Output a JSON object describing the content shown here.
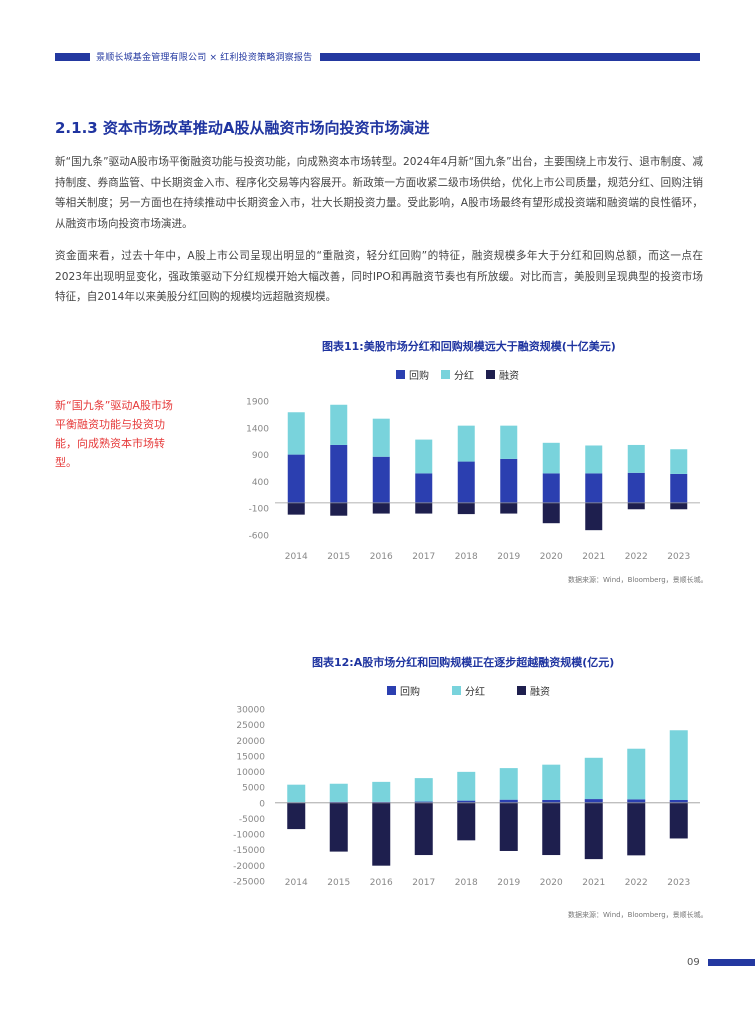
{
  "header": {
    "text": "景顺长城基金管理有限公司 × 红利投资策略洞察报告"
  },
  "section": {
    "title": "2.1.3 资本市场改革推动A股从融资市场向投资市场演进"
  },
  "paragraphs": {
    "p1": "新“国九条”驱动A股市场平衡融资功能与投资功能，向成熟资本市场转型。2024年4月新“国九条”出台，主要围绕上市发行、退市制度、减持制度、券商监管、中长期资金入市、程序化交易等内容展开。新政策一方面收紧二级市场供给，优化上市公司质量，规范分红、回购注销等相关制度；另一方面也在持续推动中长期资金入市，壮大长期投资力量。受此影响，A股市场最终有望形成投资端和融资端的良性循环，从融资市场向投资市场演进。",
    "p2": "资金面来看，过去十年中，A股上市公司呈现出明显的“重融资，轻分红回购”的特征，融资规模多年大于分红和回购总额，而这一点在2023年出现明显变化，强政策驱动下分红规模开始大幅改善，同时IPO和再融资节奏也有所放缓。对比而言，美股则呈现典型的投资市场特征，自2014年以来美股分红回购的规模均远超融资规模。"
  },
  "side_note": "新“国九条”驱动A股市场平衡融资功能与投资功能，向成熟资本市场转型。",
  "legend_labels": {
    "buyback": "回购",
    "dividend": "分红",
    "financing": "融资"
  },
  "colors": {
    "buyback": "#2b3fb0",
    "dividend": "#79d3dc",
    "financing": "#1e1f4e",
    "accent": "#2338a0",
    "note": "#e63a3a"
  },
  "chart_data": [
    {
      "type": "bar",
      "stacked": true,
      "title": "图表11:美股市场分红和回购规模远大于融资规模(十亿美元)",
      "categories": [
        "2014",
        "2015",
        "2016",
        "2017",
        "2018",
        "2019",
        "2020",
        "2021",
        "2022",
        "2023"
      ],
      "yticks": [
        1900,
        1400,
        900,
        400,
        -100,
        -600
      ],
      "ylim": [
        -600,
        1900
      ],
      "series": [
        {
          "name": "回购",
          "values": [
            900,
            1080,
            860,
            550,
            770,
            820,
            550,
            550,
            560,
            540
          ]
        },
        {
          "name": "分红",
          "values": [
            790,
            750,
            710,
            630,
            670,
            620,
            570,
            520,
            520,
            460
          ]
        },
        {
          "name": "融资",
          "values": [
            -220,
            -240,
            -200,
            -200,
            -210,
            -200,
            -380,
            -510,
            -120,
            -120
          ]
        }
      ],
      "source": "数据来源：Wind，Bloomberg，景顺长城。"
    },
    {
      "type": "bar",
      "stacked": true,
      "title": "图表12:A股市场分红和回购规模正在逐步超越融资规模(亿元)",
      "categories": [
        "2014",
        "2015",
        "2016",
        "2017",
        "2018",
        "2019",
        "2020",
        "2021",
        "2022",
        "2023"
      ],
      "yticks": [
        30000,
        25000,
        20000,
        15000,
        10000,
        5000,
        0,
        -5000,
        -10000,
        -15000,
        -20000,
        -25000
      ],
      "ylim": [
        -25000,
        30000
      ],
      "series": [
        {
          "name": "回购",
          "values": [
            200,
            300,
            300,
            400,
            700,
            1000,
            900,
            1200,
            1100,
            900
          ]
        },
        {
          "name": "分红",
          "values": [
            5600,
            5800,
            6400,
            7500,
            9200,
            10100,
            11300,
            13200,
            16200,
            22300
          ]
        },
        {
          "name": "融资",
          "values": [
            -8400,
            -15600,
            -20100,
            -16700,
            -12000,
            -15400,
            -16700,
            -18000,
            -16800,
            -11400
          ]
        }
      ],
      "source": "数据来源：Wind，Bloomberg，景顺长城。"
    }
  ],
  "page": {
    "number": "09"
  }
}
